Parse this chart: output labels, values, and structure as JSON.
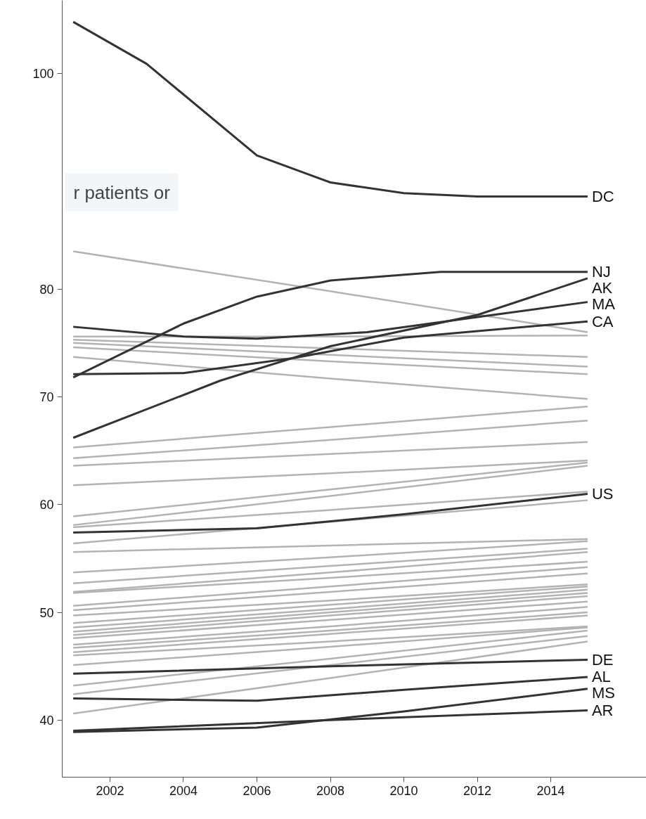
{
  "chart_data": {
    "type": "line",
    "xlim": [
      2000.7,
      2016.6
    ],
    "ylim": [
      34.7,
      106.8
    ],
    "xticks": [
      2002,
      2004,
      2006,
      2008,
      2010,
      2012,
      2014
    ],
    "yticks": [
      40,
      50,
      60,
      70,
      80,
      100
    ],
    "grid": false,
    "annotations": [
      "r patients or"
    ],
    "series": [
      {
        "color": "#b3b3b3",
        "x": [
          2001,
          2008,
          2015
        ],
        "values": [
          83.5,
          79.8,
          76.0
        ]
      },
      {
        "color": "#b3b3b3",
        "x": [
          2001,
          2008,
          2015
        ],
        "values": [
          75.6,
          75.6,
          75.7
        ]
      },
      {
        "color": "#b3b3b3",
        "x": [
          2001,
          2008,
          2015
        ],
        "values": [
          75.3,
          74.5,
          73.7
        ]
      },
      {
        "color": "#b3b3b3",
        "x": [
          2001,
          2008,
          2015
        ],
        "values": [
          75.0,
          73.9,
          72.8
        ]
      },
      {
        "color": "#b3b3b3",
        "x": [
          2001,
          2008,
          2015
        ],
        "values": [
          74.6,
          73.3,
          72.1
        ]
      },
      {
        "color": "#b3b3b3",
        "x": [
          2001,
          2008,
          2015
        ],
        "values": [
          73.7,
          71.7,
          69.8
        ]
      },
      {
        "color": "#b3b3b3",
        "x": [
          2001,
          2008,
          2015
        ],
        "values": [
          65.3,
          67.2,
          69.1
        ]
      },
      {
        "color": "#b3b3b3",
        "x": [
          2001,
          2008,
          2015
        ],
        "values": [
          64.3,
          66.0,
          67.8
        ]
      },
      {
        "color": "#b3b3b3",
        "x": [
          2001,
          2008,
          2015
        ],
        "values": [
          63.6,
          64.7,
          65.8
        ]
      },
      {
        "color": "#b3b3b3",
        "x": [
          2001,
          2008,
          2015
        ],
        "values": [
          61.8,
          62.9,
          64.1
        ]
      },
      {
        "color": "#b3b3b3",
        "x": [
          2001,
          2008,
          2015
        ],
        "values": [
          58.9,
          61.4,
          63.9
        ]
      },
      {
        "color": "#b3b3b3",
        "x": [
          2001,
          2008,
          2015
        ],
        "values": [
          58.1,
          60.8,
          63.6
        ]
      },
      {
        "color": "#b3b3b3",
        "x": [
          2001,
          2008,
          2015
        ],
        "values": [
          57.9,
          59.5,
          61.2
        ]
      },
      {
        "color": "#b3b3b3",
        "x": [
          2001,
          2008,
          2015
        ],
        "values": [
          56.4,
          58.4,
          60.4
        ]
      },
      {
        "color": "#b3b3b3",
        "x": [
          2001,
          2008,
          2015
        ],
        "values": [
          55.6,
          56.2,
          56.8
        ]
      },
      {
        "color": "#b3b3b3",
        "x": [
          2001,
          2008,
          2015
        ],
        "values": [
          53.7,
          55.1,
          56.6
        ]
      },
      {
        "color": "#b3b3b3",
        "x": [
          2001,
          2008,
          2015
        ],
        "values": [
          52.7,
          54.3,
          55.9
        ]
      },
      {
        "color": "#b3b3b3",
        "x": [
          2001,
          2008,
          2015
        ],
        "values": [
          51.9,
          53.7,
          55.6
        ]
      },
      {
        "color": "#b3b3b3",
        "x": [
          2001,
          2008,
          2015
        ],
        "values": [
          51.8,
          53.2,
          54.7
        ]
      },
      {
        "color": "#b3b3b3",
        "x": [
          2001,
          2008,
          2015
        ],
        "values": [
          50.6,
          52.4,
          54.2
        ]
      },
      {
        "color": "#b3b3b3",
        "x": [
          2001,
          2008,
          2015
        ],
        "values": [
          50.2,
          51.9,
          53.6
        ]
      },
      {
        "color": "#b3b3b3",
        "x": [
          2001,
          2008,
          2015
        ],
        "values": [
          49.7,
          51.1,
          52.6
        ]
      },
      {
        "color": "#b3b3b3",
        "x": [
          2001,
          2008,
          2015
        ],
        "values": [
          49.0,
          50.7,
          52.4
        ]
      },
      {
        "color": "#b3b3b3",
        "x": [
          2001,
          2008,
          2015
        ],
        "values": [
          48.6,
          50.3,
          52.1
        ]
      },
      {
        "color": "#b3b3b3",
        "x": [
          2001,
          2008,
          2015
        ],
        "values": [
          48.2,
          50.0,
          51.8
        ]
      },
      {
        "color": "#b3b3b3",
        "x": [
          2001,
          2008,
          2015
        ],
        "values": [
          47.9,
          49.7,
          51.5
        ]
      },
      {
        "color": "#b3b3b3",
        "x": [
          2001,
          2008,
          2015
        ],
        "values": [
          47.6,
          49.3,
          51.0
        ]
      },
      {
        "color": "#b3b3b3",
        "x": [
          2001,
          2008,
          2015
        ],
        "values": [
          47.0,
          48.7,
          50.5
        ]
      },
      {
        "color": "#b3b3b3",
        "x": [
          2001,
          2008,
          2015
        ],
        "values": [
          46.7,
          48.3,
          50.0
        ]
      },
      {
        "color": "#b3b3b3",
        "x": [
          2001,
          2008,
          2015
        ],
        "values": [
          46.3,
          48.0,
          49.7
        ]
      },
      {
        "color": "#b3b3b3",
        "x": [
          2001,
          2008,
          2015
        ],
        "values": [
          46.0,
          47.3,
          48.7
        ]
      },
      {
        "color": "#b3b3b3",
        "x": [
          2001,
          2008,
          2015
        ],
        "values": [
          45.1,
          46.8,
          48.6
        ]
      },
      {
        "color": "#b3b3b3",
        "x": [
          2001,
          2008,
          2015
        ],
        "values": [
          43.2,
          45.7,
          48.3
        ]
      },
      {
        "color": "#b3b3b3",
        "x": [
          2001,
          2008,
          2015
        ],
        "values": [
          42.4,
          45.1,
          47.8
        ]
      },
      {
        "color": "#b3b3b3",
        "x": [
          2001,
          2008,
          2015
        ],
        "values": [
          40.6,
          43.9,
          47.3
        ]
      },
      {
        "name": "DC",
        "color": "#333333",
        "x": [
          2001,
          2003,
          2006,
          2008,
          2010,
          2012,
          2015
        ],
        "values": [
          104.8,
          100.9,
          92.4,
          89.9,
          88.9,
          88.6,
          88.6
        ]
      },
      {
        "name": "NJ",
        "color": "#333333",
        "x": [
          2001,
          2004,
          2006,
          2008,
          2011,
          2015
        ],
        "values": [
          71.8,
          76.8,
          79.3,
          80.8,
          81.6,
          81.6
        ]
      },
      {
        "name": "AK",
        "color": "#333333",
        "x": [
          2001,
          2005,
          2008,
          2012,
          2015
        ],
        "values": [
          66.2,
          71.5,
          74.7,
          77.6,
          81.0
        ]
      },
      {
        "name": "MA",
        "color": "#333333",
        "x": [
          2001,
          2004,
          2006,
          2009,
          2012,
          2015
        ],
        "values": [
          76.5,
          75.6,
          75.4,
          76.0,
          77.4,
          78.8
        ]
      },
      {
        "name": "CA",
        "color": "#333333",
        "x": [
          2001,
          2004,
          2007,
          2010,
          2015
        ],
        "values": [
          72.1,
          72.2,
          73.6,
          75.5,
          77.0
        ]
      },
      {
        "name": "US",
        "color": "#333333",
        "x": [
          2001,
          2006,
          2010,
          2015
        ],
        "values": [
          57.4,
          57.8,
          59.1,
          61.0
        ]
      },
      {
        "name": "DE",
        "color": "#333333",
        "x": [
          2001,
          2008,
          2015
        ],
        "values": [
          44.3,
          45.0,
          45.6
        ]
      },
      {
        "name": "AL",
        "color": "#333333",
        "x": [
          2001,
          2006,
          2010,
          2015
        ],
        "values": [
          42.0,
          41.8,
          42.8,
          44.0
        ]
      },
      {
        "name": "MS",
        "color": "#333333",
        "x": [
          2001,
          2006,
          2010,
          2015
        ],
        "values": [
          38.9,
          39.3,
          40.8,
          42.9
        ]
      },
      {
        "name": "AR",
        "color": "#333333",
        "x": [
          2001,
          2008,
          2015
        ],
        "values": [
          39.0,
          40.0,
          40.9
        ]
      }
    ]
  }
}
